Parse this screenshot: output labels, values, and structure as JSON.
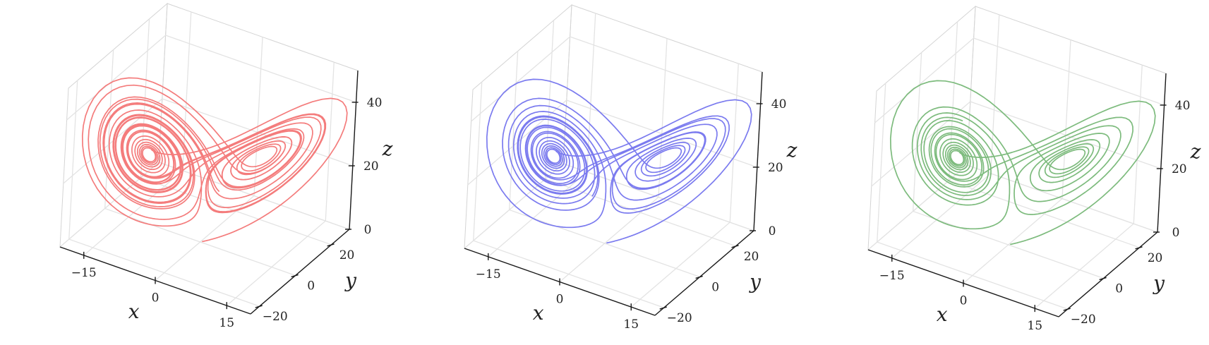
{
  "chart_data": [
    {
      "type": "line3d",
      "title": "",
      "xlabel": "x",
      "ylabel": "y",
      "zlabel": "z",
      "xlim": [
        -20,
        20
      ],
      "ylim": [
        -25,
        30
      ],
      "zlim": [
        0,
        50
      ],
      "xticks": [
        "−15",
        "0",
        "15"
      ],
      "yticks": [
        "−20",
        "0",
        "20"
      ],
      "zticks": [
        "0",
        "20",
        "40"
      ],
      "grid": true,
      "series": [
        {
          "color": "#f47c7c",
          "system": "lorenz",
          "sigma": 10,
          "rho": 28,
          "beta": 2.667,
          "initial": [
            0.1,
            0.0,
            0.0
          ],
          "steps": 7000,
          "dt": 0.004
        }
      ]
    },
    {
      "type": "line3d",
      "title": "",
      "xlabel": "x",
      "ylabel": "y",
      "zlabel": "z",
      "xlim": [
        -20,
        20
      ],
      "ylim": [
        -25,
        30
      ],
      "zlim": [
        0,
        50
      ],
      "xticks": [
        "−15",
        "0",
        "15"
      ],
      "yticks": [
        "−20",
        "0",
        "20"
      ],
      "zticks": [
        "0",
        "20",
        "40"
      ],
      "grid": true,
      "series": [
        {
          "color": "#7b7bef",
          "system": "lorenz",
          "sigma": 10,
          "rho": 28,
          "beta": 2.667,
          "initial": [
            0.1,
            0.0,
            0.0
          ],
          "steps": 5000,
          "dt": 0.004
        }
      ]
    },
    {
      "type": "line3d",
      "title": "",
      "xlabel": "x",
      "ylabel": "y",
      "zlabel": "z",
      "xlim": [
        -20,
        20
      ],
      "ylim": [
        -25,
        30
      ],
      "zlim": [
        0,
        50
      ],
      "xticks": [
        "−15",
        "0",
        "15"
      ],
      "yticks": [
        "−20",
        "0",
        "20"
      ],
      "zticks": [
        "0",
        "20",
        "40"
      ],
      "grid": true,
      "series": [
        {
          "color": "#7dbb7d",
          "system": "lorenz",
          "sigma": 10,
          "rho": 28,
          "beta": 2.667,
          "initial": [
            0.1,
            0.0,
            0.0
          ],
          "steps": 4000,
          "dt": 0.004
        }
      ]
    }
  ]
}
